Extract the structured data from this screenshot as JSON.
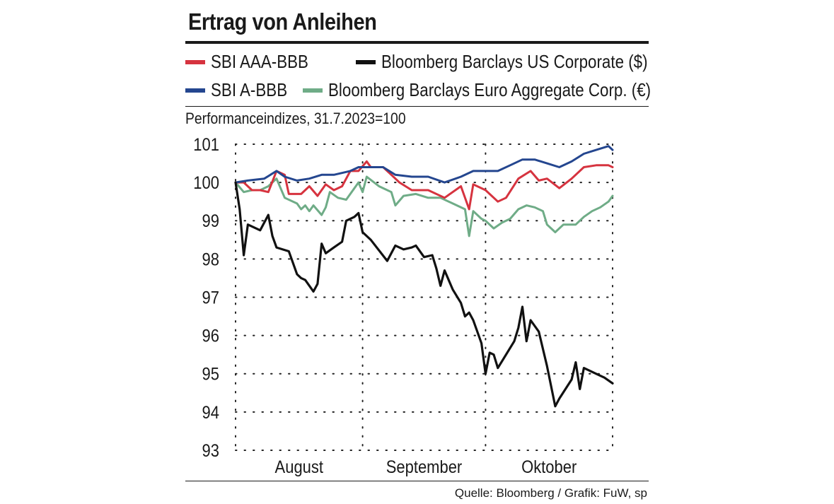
{
  "chart_data": {
    "type": "line",
    "title": "Ertrag von Anleihen",
    "subtitle": "Performanceindizes, 31.7.2023=100",
    "source": "Quelle: Bloomberg / Grafik: FuW, sp",
    "ylim": [
      93,
      101
    ],
    "yticks": [
      101,
      100,
      99,
      98,
      97,
      96,
      95,
      94,
      93
    ],
    "xlim": [
      "2023-07-31",
      "2023-10-31"
    ],
    "x_tick_dates": [
      "2023-07-31",
      "2023-08-31",
      "2023-09-30",
      "2023-10-31"
    ],
    "month_labels": [
      {
        "label": "August",
        "from": "2023-07-31",
        "to": "2023-08-31"
      },
      {
        "label": "September",
        "from": "2023-08-31",
        "to": "2023-09-30"
      },
      {
        "label": "Oktober",
        "from": "2023-09-30",
        "to": "2023-10-31"
      }
    ],
    "grid": true,
    "legend_placement": "top",
    "series": [
      {
        "name": "SBI AAA-BBB",
        "color": "#d6333f",
        "points": [
          [
            "2023-07-31",
            100.0
          ],
          [
            "2023-08-02",
            100.0
          ],
          [
            "2023-08-04",
            99.8
          ],
          [
            "2023-08-06",
            99.8
          ],
          [
            "2023-08-08",
            99.75
          ],
          [
            "2023-08-10",
            100.3
          ],
          [
            "2023-08-12",
            100.2
          ],
          [
            "2023-08-13",
            99.7
          ],
          [
            "2023-08-16",
            99.7
          ],
          [
            "2023-08-18",
            99.9
          ],
          [
            "2023-08-20",
            99.65
          ],
          [
            "2023-08-22",
            99.95
          ],
          [
            "2023-08-24",
            99.8
          ],
          [
            "2023-08-26",
            99.9
          ],
          [
            "2023-08-28",
            100.3
          ],
          [
            "2023-08-30",
            100.3
          ],
          [
            "2023-09-01",
            100.55
          ],
          [
            "2023-09-02",
            100.4
          ],
          [
            "2023-09-05",
            100.4
          ],
          [
            "2023-09-07",
            100.2
          ],
          [
            "2023-09-09",
            100.0
          ],
          [
            "2023-09-12",
            99.8
          ],
          [
            "2023-09-16",
            99.8
          ],
          [
            "2023-09-20",
            99.6
          ],
          [
            "2023-09-24",
            99.9
          ],
          [
            "2023-09-26",
            99.3
          ],
          [
            "2023-09-27",
            99.95
          ],
          [
            "2023-09-30",
            99.8
          ],
          [
            "2023-10-03",
            99.5
          ],
          [
            "2023-10-05",
            99.6
          ],
          [
            "2023-10-08",
            100.1
          ],
          [
            "2023-10-11",
            100.3
          ],
          [
            "2023-10-13",
            100.05
          ],
          [
            "2023-10-15",
            100.1
          ],
          [
            "2023-10-18",
            99.85
          ],
          [
            "2023-10-21",
            100.1
          ],
          [
            "2023-10-24",
            100.4
          ],
          [
            "2023-10-27",
            100.45
          ],
          [
            "2023-10-30",
            100.45
          ],
          [
            "2023-10-31",
            100.4
          ]
        ]
      },
      {
        "name": "SBI A-BBB",
        "color": "#24468f",
        "points": [
          [
            "2023-07-31",
            100.0
          ],
          [
            "2023-08-03",
            100.05
          ],
          [
            "2023-08-07",
            100.1
          ],
          [
            "2023-08-10",
            100.3
          ],
          [
            "2023-08-12",
            100.15
          ],
          [
            "2023-08-15",
            100.05
          ],
          [
            "2023-08-18",
            100.1
          ],
          [
            "2023-08-21",
            100.2
          ],
          [
            "2023-08-24",
            100.2
          ],
          [
            "2023-08-28",
            100.3
          ],
          [
            "2023-08-30",
            100.4
          ],
          [
            "2023-09-01",
            100.4
          ],
          [
            "2023-09-05",
            100.4
          ],
          [
            "2023-09-08",
            100.2
          ],
          [
            "2023-09-12",
            100.15
          ],
          [
            "2023-09-16",
            100.15
          ],
          [
            "2023-09-20",
            100.0
          ],
          [
            "2023-09-24",
            100.15
          ],
          [
            "2023-09-27",
            100.3
          ],
          [
            "2023-09-30",
            100.3
          ],
          [
            "2023-10-03",
            100.3
          ],
          [
            "2023-10-06",
            100.45
          ],
          [
            "2023-10-09",
            100.6
          ],
          [
            "2023-10-12",
            100.6
          ],
          [
            "2023-10-15",
            100.5
          ],
          [
            "2023-10-18",
            100.4
          ],
          [
            "2023-10-21",
            100.55
          ],
          [
            "2023-10-24",
            100.75
          ],
          [
            "2023-10-27",
            100.85
          ],
          [
            "2023-10-30",
            100.95
          ],
          [
            "2023-10-31",
            100.85
          ]
        ]
      },
      {
        "name": "Bloomberg Barclays US Corporate ($)",
        "color": "#111111",
        "points": [
          [
            "2023-07-31",
            100.0
          ],
          [
            "2023-08-01",
            99.3
          ],
          [
            "2023-08-02",
            98.1
          ],
          [
            "2023-08-03",
            98.9
          ],
          [
            "2023-08-06",
            98.75
          ],
          [
            "2023-08-08",
            99.15
          ],
          [
            "2023-08-09",
            98.6
          ],
          [
            "2023-08-10",
            98.3
          ],
          [
            "2023-08-13",
            98.2
          ],
          [
            "2023-08-15",
            97.6
          ],
          [
            "2023-08-16",
            97.5
          ],
          [
            "2023-08-17",
            97.45
          ],
          [
            "2023-08-19",
            97.15
          ],
          [
            "2023-08-20",
            97.35
          ],
          [
            "2023-08-21",
            98.4
          ],
          [
            "2023-08-22",
            98.15
          ],
          [
            "2023-08-24",
            98.3
          ],
          [
            "2023-08-26",
            98.45
          ],
          [
            "2023-08-27",
            99.0
          ],
          [
            "2023-08-29",
            99.1
          ],
          [
            "2023-08-30",
            99.2
          ],
          [
            "2023-08-31",
            98.7
          ],
          [
            "2023-09-02",
            98.5
          ],
          [
            "2023-09-06",
            97.95
          ],
          [
            "2023-09-08",
            98.35
          ],
          [
            "2023-09-10",
            98.25
          ],
          [
            "2023-09-12",
            98.3
          ],
          [
            "2023-09-13",
            98.35
          ],
          [
            "2023-09-15",
            98.05
          ],
          [
            "2023-09-17",
            98.1
          ],
          [
            "2023-09-18",
            97.75
          ],
          [
            "2023-09-19",
            97.3
          ],
          [
            "2023-09-20",
            97.7
          ],
          [
            "2023-09-22",
            97.2
          ],
          [
            "2023-09-24",
            96.85
          ],
          [
            "2023-09-25",
            96.5
          ],
          [
            "2023-09-26",
            96.6
          ],
          [
            "2023-09-27",
            96.4
          ],
          [
            "2023-09-29",
            95.8
          ],
          [
            "2023-09-30",
            95.0
          ],
          [
            "2023-10-01",
            95.55
          ],
          [
            "2023-10-02",
            95.5
          ],
          [
            "2023-10-03",
            95.15
          ],
          [
            "2023-10-07",
            95.85
          ],
          [
            "2023-10-08",
            96.2
          ],
          [
            "2023-10-09",
            96.75
          ],
          [
            "2023-10-10",
            95.85
          ],
          [
            "2023-10-11",
            96.4
          ],
          [
            "2023-10-13",
            96.1
          ],
          [
            "2023-10-15",
            95.2
          ],
          [
            "2023-10-17",
            94.15
          ],
          [
            "2023-10-18",
            94.35
          ],
          [
            "2023-10-21",
            94.85
          ],
          [
            "2023-10-22",
            95.3
          ],
          [
            "2023-10-23",
            94.6
          ],
          [
            "2023-10-24",
            95.15
          ],
          [
            "2023-10-27",
            95.0
          ],
          [
            "2023-10-29",
            94.9
          ],
          [
            "2023-10-31",
            94.75
          ]
        ]
      },
      {
        "name": "Bloomberg Barclays Euro Aggregate Corp. (€)",
        "color": "#6fac87",
        "points": [
          [
            "2023-07-31",
            100.0
          ],
          [
            "2023-08-02",
            99.75
          ],
          [
            "2023-08-04",
            99.8
          ],
          [
            "2023-08-06",
            99.8
          ],
          [
            "2023-08-08",
            99.9
          ],
          [
            "2023-08-10",
            100.1
          ],
          [
            "2023-08-12",
            99.6
          ],
          [
            "2023-08-15",
            99.45
          ],
          [
            "2023-08-16",
            99.3
          ],
          [
            "2023-08-17",
            99.4
          ],
          [
            "2023-08-18",
            99.25
          ],
          [
            "2023-08-19",
            99.4
          ],
          [
            "2023-08-21",
            99.15
          ],
          [
            "2023-08-22",
            99.35
          ],
          [
            "2023-08-23",
            99.75
          ],
          [
            "2023-08-25",
            99.6
          ],
          [
            "2023-08-27",
            99.55
          ],
          [
            "2023-08-29",
            99.85
          ],
          [
            "2023-08-30",
            100.0
          ],
          [
            "2023-08-31",
            99.75
          ],
          [
            "2023-09-01",
            100.15
          ],
          [
            "2023-09-04",
            99.9
          ],
          [
            "2023-09-07",
            99.75
          ],
          [
            "2023-09-08",
            99.4
          ],
          [
            "2023-09-10",
            99.65
          ],
          [
            "2023-09-13",
            99.7
          ],
          [
            "2023-09-16",
            99.6
          ],
          [
            "2023-09-19",
            99.6
          ],
          [
            "2023-09-22",
            99.45
          ],
          [
            "2023-09-25",
            99.3
          ],
          [
            "2023-09-26",
            98.6
          ],
          [
            "2023-09-27",
            99.25
          ],
          [
            "2023-09-29",
            99.05
          ],
          [
            "2023-09-30",
            99.0
          ],
          [
            "2023-10-02",
            98.8
          ],
          [
            "2023-10-04",
            98.95
          ],
          [
            "2023-10-06",
            99.05
          ],
          [
            "2023-10-08",
            99.3
          ],
          [
            "2023-10-10",
            99.4
          ],
          [
            "2023-10-12",
            99.35
          ],
          [
            "2023-10-14",
            99.25
          ],
          [
            "2023-10-15",
            98.9
          ],
          [
            "2023-10-17",
            98.7
          ],
          [
            "2023-10-19",
            98.9
          ],
          [
            "2023-10-22",
            98.9
          ],
          [
            "2023-10-24",
            99.1
          ],
          [
            "2023-10-26",
            99.25
          ],
          [
            "2023-10-28",
            99.35
          ],
          [
            "2023-10-30",
            99.5
          ],
          [
            "2023-10-31",
            99.65
          ]
        ]
      }
    ]
  }
}
